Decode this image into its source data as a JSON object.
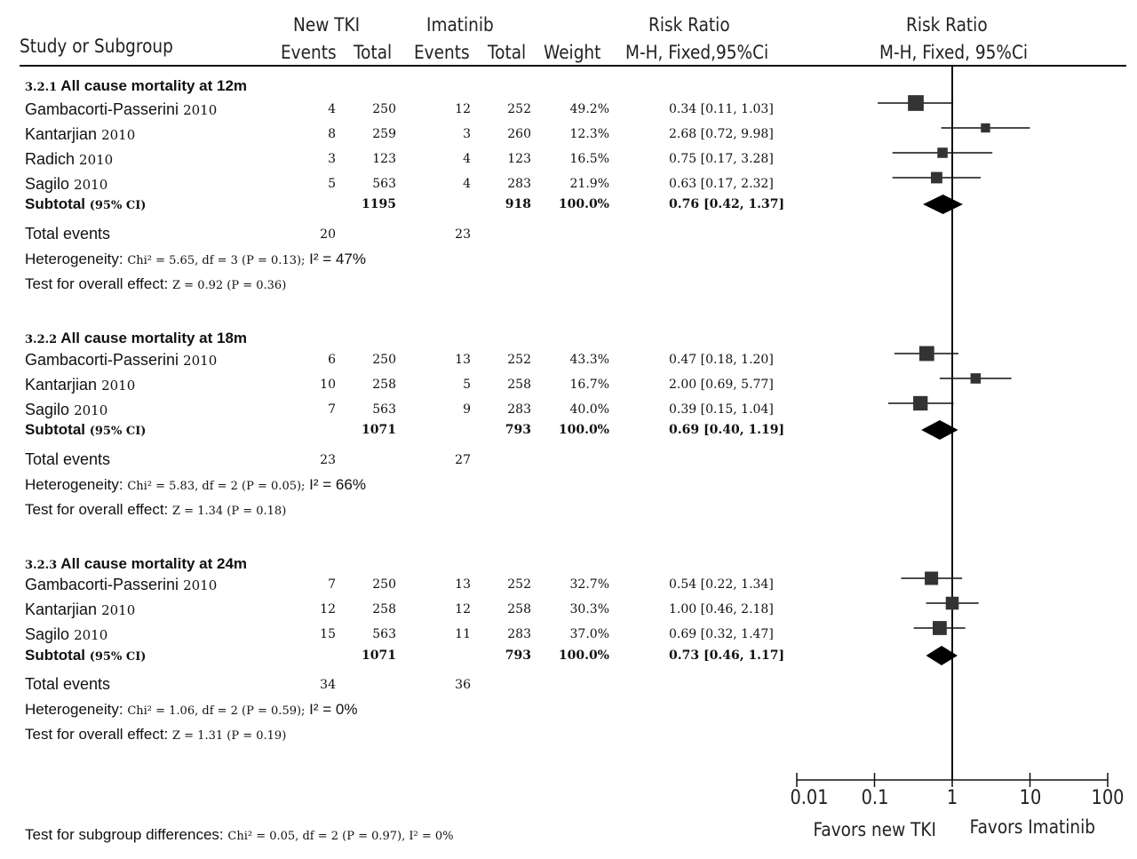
{
  "header": {
    "study_label": "Study or Subgroup",
    "group1": "New TKI",
    "group2": "Imatinib",
    "events": "Events",
    "total": "Total",
    "weight": "Weight",
    "rr_title": "Risk Ratio",
    "rr_method": "M-H, Fixed,95%Ci",
    "plot_title": "Risk Ratio",
    "plot_method": "M-H, Fixed, 95%Ci"
  },
  "subgroups": [
    {
      "id": "3.2.1",
      "title": "All cause mortality at 12m",
      "studies": [
        {
          "name": "Gambacorti-Passerini",
          "year": "2010",
          "e1": "4",
          "t1": "250",
          "e2": "12",
          "t2": "252",
          "weight": "49.2%",
          "ci": "0.34 [0.11, 1.03]"
        },
        {
          "name": "Kantarjian",
          "year": "2010",
          "e1": "8",
          "t1": "259",
          "e2": "3",
          "t2": "260",
          "weight": "12.3%",
          "ci": "2.68 [0.72, 9.98]"
        },
        {
          "name": "Radich",
          "year": "2010",
          "e1": "3",
          "t1": "123",
          "e2": "4",
          "t2": "123",
          "weight": "16.5%",
          "ci": "0.75 [0.17, 3.28]"
        },
        {
          "name": "Sagilo",
          "year": "2010",
          "e1": "5",
          "t1": "563",
          "e2": "4",
          "t2": "283",
          "weight": "21.9%",
          "ci": "0.63 [0.17, 2.32]"
        }
      ],
      "subtotal": {
        "label": "Subtotal",
        "suffix": "(95% CI)",
        "t1": "1195",
        "t2": "918",
        "weight": "100.0%",
        "ci": "0.76 [0.42, 1.37]"
      },
      "total_events": {
        "label": "Total events",
        "e1": "20",
        "e2": "23"
      },
      "heterogeneity": {
        "label": "Heterogeneity:",
        "chi": "Chi² = 5.65, df = 3 (P = 0.13);",
        "i2": "I² = 47%"
      },
      "overall": {
        "label": "Test for overall effect:",
        "z": "Z = 0.92 (P = 0.36)"
      }
    },
    {
      "id": "3.2.2",
      "title": "All cause mortality at 18m",
      "studies": [
        {
          "name": "Gambacorti-Passerini",
          "year": "2010",
          "e1": "6",
          "t1": "250",
          "e2": "13",
          "t2": "252",
          "weight": "43.3%",
          "ci": "0.47 [0.18, 1.20]"
        },
        {
          "name": "Kantarjian",
          "year": "2010",
          "e1": "10",
          "t1": "258",
          "e2": "5",
          "t2": "258",
          "weight": "16.7%",
          "ci": "2.00 [0.69, 5.77]"
        },
        {
          "name": "Sagilo",
          "year": "2010",
          "e1": "7",
          "t1": "563",
          "e2": "9",
          "t2": "283",
          "weight": "40.0%",
          "ci": "0.39 [0.15, 1.04]"
        }
      ],
      "subtotal": {
        "label": "Subtotal",
        "suffix": "(95% CI)",
        "t1": "1071",
        "t2": "793",
        "weight": "100.0%",
        "ci": "0.69 [0.40, 1.19]"
      },
      "total_events": {
        "label": "Total events",
        "e1": "23",
        "e2": "27"
      },
      "heterogeneity": {
        "label": "Heterogeneity:",
        "chi": "Chi² = 5.83, df = 2 (P = 0.05);",
        "i2": "I² = 66%"
      },
      "overall": {
        "label": "Test for overall effect:",
        "z": "Z = 1.34 (P = 0.18)"
      }
    },
    {
      "id": "3.2.3",
      "title": "All cause mortality at 24m",
      "studies": [
        {
          "name": "Gambacorti-Passerini",
          "year": "2010",
          "e1": "7",
          "t1": "250",
          "e2": "13",
          "t2": "252",
          "weight": "32.7%",
          "ci": "0.54 [0.22, 1.34]"
        },
        {
          "name": "Kantarjian",
          "year": "2010",
          "e1": "12",
          "t1": "258",
          "e2": "12",
          "t2": "258",
          "weight": "30.3%",
          "ci": "1.00 [0.46, 2.18]"
        },
        {
          "name": "Sagilo",
          "year": "2010",
          "e1": "15",
          "t1": "563",
          "e2": "11",
          "t2": "283",
          "weight": "37.0%",
          "ci": "0.69 [0.32, 1.47]"
        }
      ],
      "subtotal": {
        "label": "Subtotal",
        "suffix": "(95% CI)",
        "t1": "1071",
        "t2": "793",
        "weight": "100.0%",
        "ci": "0.73 [0.46, 1.17]"
      },
      "total_events": {
        "label": "Total events",
        "e1": "34",
        "e2": "36"
      },
      "heterogeneity": {
        "label": "Heterogeneity:",
        "chi": "Chi² = 1.06, df = 2 (P = 0.59);",
        "i2": "I² = 0%"
      },
      "overall": {
        "label": "Test for overall effect:",
        "z": "Z = 1.31 (P = 0.19)"
      }
    }
  ],
  "footer": {
    "label": "Test for subgroup differences:",
    "stat": "Chi² = 0.05, df = 2 (P = 0.97), I² = 0%"
  },
  "colors": {
    "ink": "#111111",
    "marker": "#333333"
  },
  "chart_data": {
    "type": "forest",
    "title": "Risk Ratio",
    "method": "M-H, Fixed, 95%Ci",
    "x_scale": "log",
    "xlim": [
      0.01,
      100
    ],
    "ticks": [
      "0.01",
      "0.1",
      "1",
      "10",
      "100"
    ],
    "tick_values": [
      0.01,
      0.1,
      1,
      10,
      100
    ],
    "reference_line": 1,
    "xlabel_left": "Favors new TKI",
    "xlabel_right": "Favors Imatinib",
    "series": [
      {
        "name": "All cause mortality at 12m",
        "points": [
          {
            "study": "Gambacorti-Passerini 2010",
            "rr": 0.34,
            "lo": 0.11,
            "hi": 1.03,
            "weight": 49.2
          },
          {
            "study": "Kantarjian 2010",
            "rr": 2.68,
            "lo": 0.72,
            "hi": 9.98,
            "weight": 12.3
          },
          {
            "study": "Radich 2010",
            "rr": 0.75,
            "lo": 0.17,
            "hi": 3.28,
            "weight": 16.5
          },
          {
            "study": "Sagilo 2010",
            "rr": 0.63,
            "lo": 0.17,
            "hi": 2.32,
            "weight": 21.9
          }
        ],
        "subtotal": {
          "rr": 0.76,
          "lo": 0.42,
          "hi": 1.37
        }
      },
      {
        "name": "All cause mortality at 18m",
        "points": [
          {
            "study": "Gambacorti-Passerini 2010",
            "rr": 0.47,
            "lo": 0.18,
            "hi": 1.2,
            "weight": 43.3
          },
          {
            "study": "Kantarjian 2010",
            "rr": 2.0,
            "lo": 0.69,
            "hi": 5.77,
            "weight": 16.7
          },
          {
            "study": "Sagilo 2010",
            "rr": 0.39,
            "lo": 0.15,
            "hi": 1.04,
            "weight": 40.0
          }
        ],
        "subtotal": {
          "rr": 0.69,
          "lo": 0.4,
          "hi": 1.19
        }
      },
      {
        "name": "All cause mortality at 24m",
        "points": [
          {
            "study": "Gambacorti-Passerini 2010",
            "rr": 0.54,
            "lo": 0.22,
            "hi": 1.34,
            "weight": 32.7
          },
          {
            "study": "Kantarjian 2010",
            "rr": 1.0,
            "lo": 0.46,
            "hi": 2.18,
            "weight": 30.3
          },
          {
            "study": "Sagilo 2010",
            "rr": 0.69,
            "lo": 0.32,
            "hi": 1.47,
            "weight": 37.0
          }
        ],
        "subtotal": {
          "rr": 0.73,
          "lo": 0.46,
          "hi": 1.17
        }
      }
    ]
  }
}
